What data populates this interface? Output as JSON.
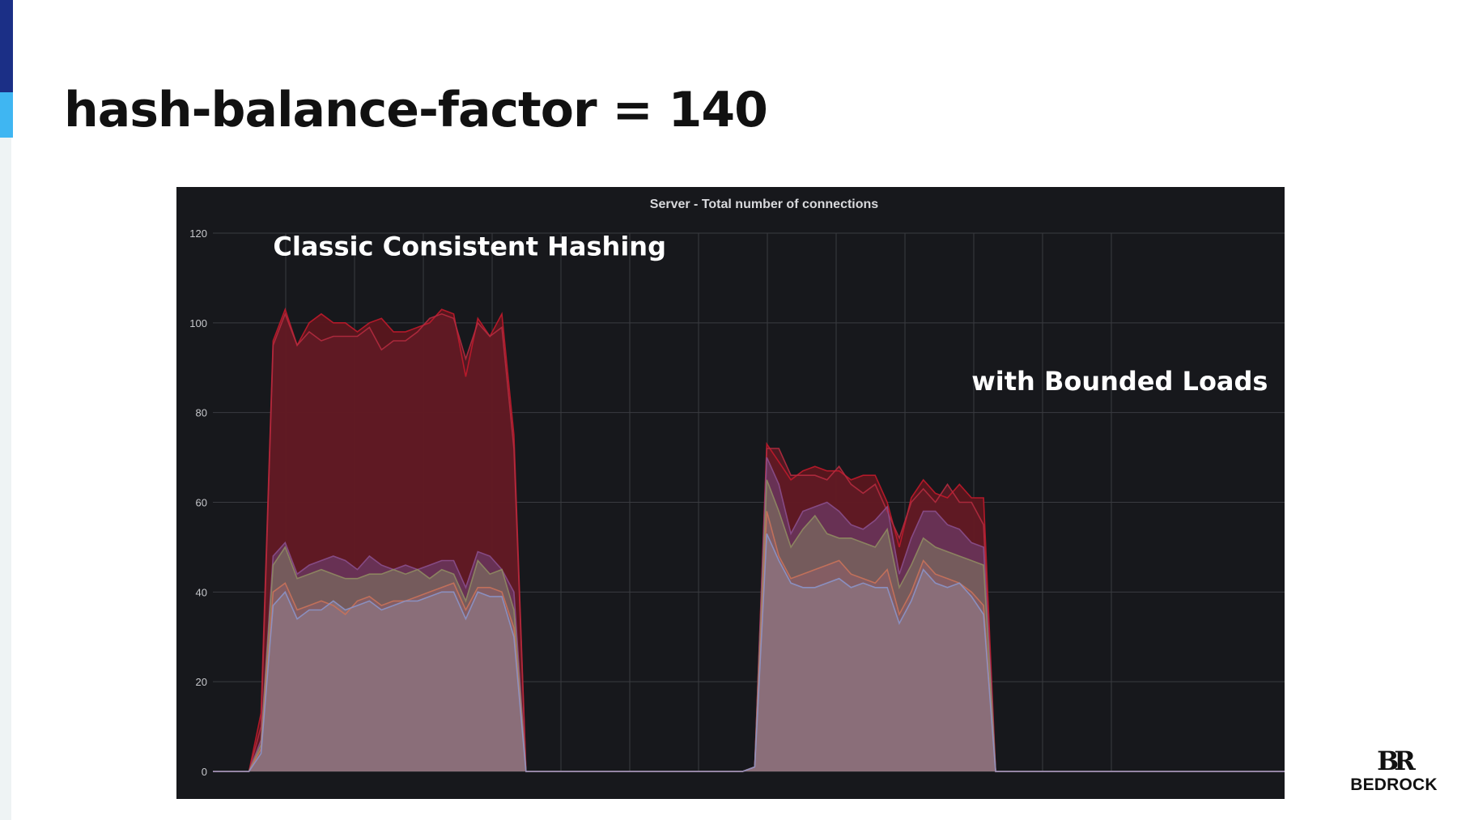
{
  "slide": {
    "title": "hash-balance-factor = 140",
    "brand_mark": "BR",
    "brand_name": "BEDROCK"
  },
  "colors": {
    "edge_dark": "#1b2f86",
    "edge_light": "#3fb6f2",
    "panel_background": "#17181c",
    "grid": "#3a3b40",
    "max_series": "#c0192b",
    "max_fill": "#5a161e",
    "mid_fill": "#7d4a6a",
    "low_fill": "#8e7680"
  },
  "chart_data": {
    "type": "area",
    "title": "Server - Total number of connections",
    "xlabel": "",
    "ylabel": "",
    "ylim": [
      0,
      120
    ],
    "yticks": [
      "0",
      "20",
      "40",
      "60",
      "80",
      "100",
      "120"
    ],
    "xticks": [],
    "grid": true,
    "legend": "none",
    "annotations": [
      {
        "text": "Classic Consistent Hashing",
        "x": 5,
        "y": 115
      },
      {
        "text": "with Bounded Loads",
        "x": 63,
        "y": 85
      }
    ],
    "x": [
      0,
      1,
      2,
      3,
      4,
      5,
      6,
      7,
      8,
      9,
      10,
      11,
      12,
      13,
      14,
      15,
      16,
      17,
      18,
      19,
      20,
      21,
      22,
      23,
      24,
      25,
      26,
      27,
      28,
      29,
      30,
      31,
      32,
      33,
      34,
      35,
      36,
      37,
      38,
      39,
      40,
      41,
      42,
      43,
      44,
      45,
      46,
      47,
      48,
      49,
      50,
      51,
      52,
      53,
      54,
      55,
      56,
      57,
      58,
      59,
      60,
      61,
      62,
      63,
      64,
      65,
      66,
      67,
      68,
      69,
      70,
      71,
      72,
      73,
      74,
      75,
      76,
      77,
      78,
      79,
      80,
      81,
      82,
      83,
      84,
      85,
      86,
      87,
      88,
      89
    ],
    "series": [
      {
        "role": "max",
        "color": "#c0192b",
        "fill": "#5a161e",
        "values": [
          0,
          0,
          0,
          0,
          13,
          96,
          103,
          95,
          100,
          102,
          100,
          100,
          98,
          100,
          101,
          98,
          98,
          99,
          100,
          103,
          102,
          88,
          101,
          97,
          102,
          75,
          0,
          0,
          0,
          0,
          0,
          0,
          0,
          0,
          0,
          0,
          0,
          0,
          0,
          0,
          0,
          0,
          0,
          0,
          0,
          1,
          73,
          69,
          65,
          67,
          68,
          67,
          67,
          65,
          66,
          66,
          60,
          50,
          61,
          65,
          62,
          61,
          64,
          61,
          61,
          0,
          0,
          0,
          0,
          0,
          0,
          0,
          0,
          0,
          0,
          0,
          0,
          0,
          0,
          0,
          0,
          0,
          0,
          0,
          0,
          0,
          0,
          0,
          0,
          0
        ]
      },
      {
        "role": "series-2",
        "color": "#b42b3f",
        "fill": "#631b26",
        "values": [
          0,
          0,
          0,
          0,
          10,
          95,
          102,
          95,
          98,
          96,
          97,
          97,
          97,
          99,
          94,
          96,
          96,
          98,
          101,
          102,
          101,
          92,
          100,
          97,
          99,
          72,
          0,
          0,
          0,
          0,
          0,
          0,
          0,
          0,
          0,
          0,
          0,
          0,
          0,
          0,
          0,
          0,
          0,
          0,
          0,
          1,
          72,
          72,
          66,
          66,
          66,
          65,
          68,
          64,
          62,
          64,
          58,
          52,
          60,
          63,
          60,
          64,
          60,
          60,
          55,
          0,
          0,
          0,
          0,
          0,
          0,
          0,
          0,
          0,
          0,
          0,
          0,
          0,
          0,
          0,
          0,
          0,
          0,
          0,
          0,
          0,
          0,
          0,
          0,
          0
        ]
      },
      {
        "role": "series-3",
        "color": "#8a4f8c",
        "fill": "#6b3a66",
        "values": [
          0,
          0,
          0,
          0,
          7,
          48,
          51,
          44,
          46,
          47,
          48,
          47,
          45,
          48,
          46,
          45,
          46,
          45,
          46,
          47,
          47,
          41,
          49,
          48,
          45,
          40,
          0,
          0,
          0,
          0,
          0,
          0,
          0,
          0,
          0,
          0,
          0,
          0,
          0,
          0,
          0,
          0,
          0,
          0,
          0,
          1,
          70,
          64,
          53,
          58,
          59,
          60,
          58,
          55,
          54,
          56,
          59,
          44,
          52,
          58,
          58,
          55,
          54,
          51,
          50,
          0,
          0,
          0,
          0,
          0,
          0,
          0,
          0,
          0,
          0,
          0,
          0,
          0,
          0,
          0,
          0,
          0,
          0,
          0,
          0,
          0,
          0,
          0,
          0,
          0
        ]
      },
      {
        "role": "series-4",
        "color": "#8f8a62",
        "fill": "#7a6a5f",
        "values": [
          0,
          0,
          0,
          0,
          6,
          46,
          50,
          43,
          44,
          45,
          44,
          43,
          43,
          44,
          44,
          45,
          44,
          45,
          43,
          45,
          44,
          38,
          47,
          44,
          45,
          36,
          0,
          0,
          0,
          0,
          0,
          0,
          0,
          0,
          0,
          0,
          0,
          0,
          0,
          0,
          0,
          0,
          0,
          0,
          0,
          1,
          65,
          58,
          50,
          54,
          57,
          53,
          52,
          52,
          51,
          50,
          54,
          41,
          46,
          52,
          50,
          49,
          48,
          47,
          46,
          0,
          0,
          0,
          0,
          0,
          0,
          0,
          0,
          0,
          0,
          0,
          0,
          0,
          0,
          0,
          0,
          0,
          0,
          0,
          0,
          0,
          0,
          0,
          0,
          0
        ]
      },
      {
        "role": "series-5",
        "color": "#c9725a",
        "fill": "#8a5e66",
        "values": [
          0,
          0,
          0,
          0,
          5,
          40,
          42,
          36,
          37,
          38,
          37,
          35,
          38,
          39,
          37,
          38,
          38,
          39,
          40,
          41,
          42,
          36,
          41,
          41,
          40,
          32,
          0,
          0,
          0,
          0,
          0,
          0,
          0,
          0,
          0,
          0,
          0,
          0,
          0,
          0,
          0,
          0,
          0,
          0,
          0,
          1,
          58,
          48,
          43,
          44,
          45,
          46,
          47,
          44,
          43,
          42,
          45,
          35,
          40,
          47,
          44,
          43,
          42,
          40,
          37,
          0,
          0,
          0,
          0,
          0,
          0,
          0,
          0,
          0,
          0,
          0,
          0,
          0,
          0,
          0,
          0,
          0,
          0,
          0,
          0,
          0,
          0,
          0,
          0,
          0
        ]
      },
      {
        "role": "min",
        "color": "#8b93c8",
        "fill": "#8c7480",
        "values": [
          0,
          0,
          0,
          0,
          4,
          37,
          40,
          34,
          36,
          36,
          38,
          36,
          37,
          38,
          36,
          37,
          38,
          38,
          39,
          40,
          40,
          34,
          40,
          39,
          39,
          30,
          0,
          0,
          0,
          0,
          0,
          0,
          0,
          0,
          0,
          0,
          0,
          0,
          0,
          0,
          0,
          0,
          0,
          0,
          0,
          1,
          53,
          47,
          42,
          41,
          41,
          42,
          43,
          41,
          42,
          41,
          41,
          33,
          38,
          45,
          42,
          41,
          42,
          39,
          35,
          0,
          0,
          0,
          0,
          0,
          0,
          0,
          0,
          0,
          0,
          0,
          0,
          0,
          0,
          0,
          0,
          0,
          0,
          0,
          0,
          0,
          0,
          0,
          0,
          0
        ]
      }
    ]
  }
}
